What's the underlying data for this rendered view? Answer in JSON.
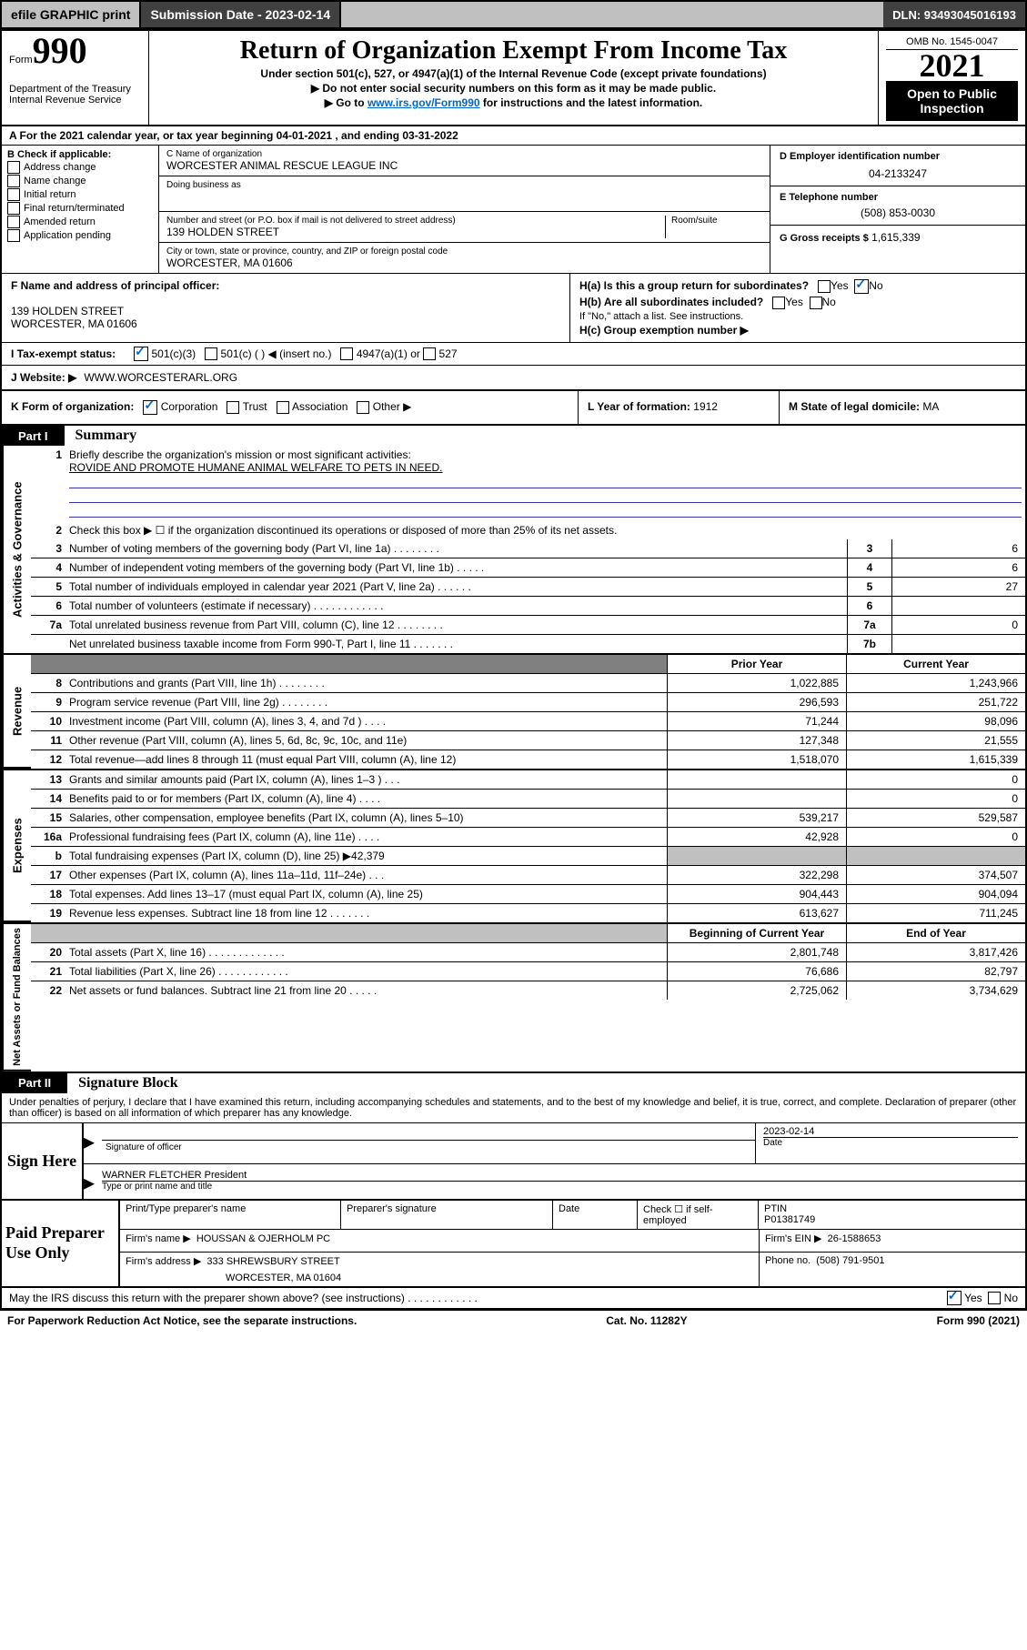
{
  "topbar": {
    "efile": "efile GRAPHIC print",
    "submission_label": "Submission Date - 2023-02-14",
    "dln": "DLN: 93493045016193"
  },
  "header": {
    "form_label": "Form",
    "form_num": "990",
    "dept": "Department of the Treasury",
    "irs": "Internal Revenue Service",
    "title": "Return of Organization Exempt From Income Tax",
    "subtitle": "Under section 501(c), 527, or 4947(a)(1) of the Internal Revenue Code (except private foundations)",
    "no_ssn": "▶ Do not enter social security numbers on this form as it may be made public.",
    "goto_pre": "▶ Go to ",
    "goto_link": "www.irs.gov/Form990",
    "goto_post": " for instructions and the latest information.",
    "omb": "OMB No. 1545-0047",
    "year": "2021",
    "open": "Open to Public Inspection"
  },
  "row_a": "A  For the 2021 calendar year, or tax year beginning 04-01-2021   , and ending 03-31-2022",
  "section_b": {
    "b_label": "B Check if applicable:",
    "checks": [
      "Address change",
      "Name change",
      "Initial return",
      "Final return/terminated",
      "Amended return",
      "Application pending"
    ],
    "c_name_label": "C Name of organization",
    "c_name": "WORCESTER ANIMAL RESCUE LEAGUE INC",
    "dba_label": "Doing business as",
    "dba": "",
    "addr_label": "Number and street (or P.O. box if mail is not delivered to street address)",
    "room_label": "Room/suite",
    "addr": "139 HOLDEN STREET",
    "city_label": "City or town, state or province, country, and ZIP or foreign postal code",
    "city": "WORCESTER, MA  01606",
    "d_label": "D Employer identification number",
    "d_val": "04-2133247",
    "e_label": "E Telephone number",
    "e_val": "(508) 853-0030",
    "g_label": "G Gross receipts $",
    "g_val": "1,615,339"
  },
  "row_fh": {
    "f_label": "F  Name and address of principal officer:",
    "f_addr1": "139 HOLDEN STREET",
    "f_addr2": "WORCESTER, MA  01606",
    "ha": "H(a)  Is this a group return for subordinates?",
    "ha_yes": "Yes",
    "ha_no": "No",
    "hb": "H(b)  Are all subordinates included?",
    "hb_yes": "Yes",
    "hb_no": "No",
    "hb_note": "If \"No,\" attach a list. See instructions.",
    "hc": "H(c)  Group exemption number ▶"
  },
  "row_i": {
    "label": "I    Tax-exempt status:",
    "opt1": "501(c)(3)",
    "opt2": "501(c) (   ) ◀ (insert no.)",
    "opt3": "4947(a)(1) or",
    "opt4": "527"
  },
  "row_j": {
    "label": "J   Website: ▶",
    "val": "WWW.WORCESTERARL.ORG"
  },
  "row_k": {
    "k_label": "K Form of organization:",
    "corp": "Corporation",
    "trust": "Trust",
    "assoc": "Association",
    "other": "Other ▶",
    "l_label": "L Year of formation:",
    "l_val": "1912",
    "m_label": "M State of legal domicile:",
    "m_val": "MA"
  },
  "part1": {
    "num": "Part I",
    "title": "Summary",
    "side_gov": "Activities & Governance",
    "side_rev": "Revenue",
    "side_exp": "Expenses",
    "side_net": "Net Assets or Fund Balances",
    "l1_label": "Briefly describe the organization's mission or most significant activities:",
    "l1_val": "ROVIDE AND PROMOTE HUMANE ANIMAL WELFARE TO PETS IN NEED.",
    "l2": "Check this box ▶ ☐  if the organization discontinued its operations or disposed of more than 25% of its net assets.",
    "lines_gov": [
      {
        "n": "3",
        "t": "Number of voting members of the governing body (Part VI, line 1a)  .   .   .   .   .   .   .   .",
        "box": "3",
        "v": "6"
      },
      {
        "n": "4",
        "t": "Number of independent voting members of the governing body (Part VI, line 1b)   .   .   .   .   .",
        "box": "4",
        "v": "6"
      },
      {
        "n": "5",
        "t": "Total number of individuals employed in calendar year 2021 (Part V, line 2a)   .   .   .   .   .   .",
        "box": "5",
        "v": "27"
      },
      {
        "n": "6",
        "t": "Total number of volunteers (estimate if necessary)   .   .   .   .   .   .   .   .   .   .   .   .",
        "box": "6",
        "v": ""
      },
      {
        "n": "7a",
        "t": "Total unrelated business revenue from Part VIII, column (C), line 12   .   .   .   .   .   .   .   .",
        "box": "7a",
        "v": "0"
      },
      {
        "n": "  ",
        "t": "Net unrelated business taxable income from Form 990-T, Part I, line 11   .   .   .   .   .   .   .",
        "box": "7b",
        "v": ""
      }
    ],
    "hdr_prior": "Prior Year",
    "hdr_curr": "Current Year",
    "revenue": [
      {
        "n": "8",
        "t": "Contributions and grants (Part VIII, line 1h)   .   .   .   .   .   .   .   .",
        "p": "1,022,885",
        "c": "1,243,966"
      },
      {
        "n": "9",
        "t": "Program service revenue (Part VIII, line 2g)   .   .   .   .   .   .   .   .",
        "p": "296,593",
        "c": "251,722"
      },
      {
        "n": "10",
        "t": "Investment income (Part VIII, column (A), lines 3, 4, and 7d )   .   .   .   .",
        "p": "71,244",
        "c": "98,096"
      },
      {
        "n": "11",
        "t": "Other revenue (Part VIII, column (A), lines 5, 6d, 8c, 9c, 10c, and 11e)",
        "p": "127,348",
        "c": "21,555"
      },
      {
        "n": "12",
        "t": "Total revenue—add lines 8 through 11 (must equal Part VIII, column (A), line 12)",
        "p": "1,518,070",
        "c": "1,615,339"
      }
    ],
    "expenses": [
      {
        "n": "13",
        "t": "Grants and similar amounts paid (Part IX, column (A), lines 1–3 )   .   .   .",
        "p": "",
        "c": "0"
      },
      {
        "n": "14",
        "t": "Benefits paid to or for members (Part IX, column (A), line 4)   .   .   .   .",
        "p": "",
        "c": "0"
      },
      {
        "n": "15",
        "t": "Salaries, other compensation, employee benefits (Part IX, column (A), lines 5–10)",
        "p": "539,217",
        "c": "529,587"
      },
      {
        "n": "16a",
        "t": "Professional fundraising fees (Part IX, column (A), line 11e)   .   .   .   .",
        "p": "42,928",
        "c": "0"
      },
      {
        "n": "b",
        "t": "Total fundraising expenses (Part IX, column (D), line 25) ▶42,379",
        "p": "GREY",
        "c": "GREY"
      },
      {
        "n": "17",
        "t": "Other expenses (Part IX, column (A), lines 11a–11d, 11f–24e)   .   .   .",
        "p": "322,298",
        "c": "374,507"
      },
      {
        "n": "18",
        "t": "Total expenses. Add lines 13–17 (must equal Part IX, column (A), line 25)",
        "p": "904,443",
        "c": "904,094"
      },
      {
        "n": "19",
        "t": "Revenue less expenses. Subtract line 18 from line 12   .   .   .   .   .   .   .",
        "p": "613,627",
        "c": "711,245"
      }
    ],
    "hdr_begin": "Beginning of Current Year",
    "hdr_end": "End of Year",
    "netassets": [
      {
        "n": "20",
        "t": "Total assets (Part X, line 16)   .   .   .   .   .   .   .   .   .   .   .   .   .",
        "p": "2,801,748",
        "c": "3,817,426"
      },
      {
        "n": "21",
        "t": "Total liabilities (Part X, line 26)   .   .   .   .   .   .   .   .   .   .   .   .",
        "p": "76,686",
        "c": "82,797"
      },
      {
        "n": "22",
        "t": "Net assets or fund balances. Subtract line 21 from line 20   .   .   .   .   .",
        "p": "2,725,062",
        "c": "3,734,629"
      }
    ]
  },
  "part2": {
    "num": "Part II",
    "title": "Signature Block",
    "declaration": "Under penalties of perjury, I declare that I have examined this return, including accompanying schedules and statements, and to the best of my knowledge and belief, it is true, correct, and complete. Declaration of preparer (other than officer) is based on all information of which preparer has any knowledge."
  },
  "sign": {
    "label": "Sign Here",
    "sig_of_officer": "Signature of officer",
    "date_label": "Date",
    "date_val": "2023-02-14",
    "name": "WARNER FLETCHER  President",
    "name_label": "Type or print name and title"
  },
  "prep": {
    "label": "Paid Preparer Use Only",
    "h1": "Print/Type preparer's name",
    "h2": "Preparer's signature",
    "h3": "Date",
    "h4_check": "Check ☐ if self-employed",
    "h5": "PTIN",
    "ptin": "P01381749",
    "firm_name_label": "Firm's name      ▶",
    "firm_name": "HOUSSAN & OJERHOLM PC",
    "firm_ein_label": "Firm's EIN ▶",
    "firm_ein": "26-1588653",
    "firm_addr_label": "Firm's address ▶",
    "firm_addr1": "333 SHREWSBURY STREET",
    "firm_addr2": "WORCESTER, MA  01604",
    "phone_label": "Phone no.",
    "phone": "(508) 791-9501"
  },
  "bottom": {
    "discuss": "May the IRS discuss this return with the preparer shown above? (see instructions)   .   .   .   .   .   .   .   .   .   .   .   .",
    "yes": "Yes",
    "no": "No",
    "pra": "For Paperwork Reduction Act Notice, see the separate instructions.",
    "cat": "Cat. No. 11282Y",
    "formfoot": "Form 990 (2021)"
  }
}
